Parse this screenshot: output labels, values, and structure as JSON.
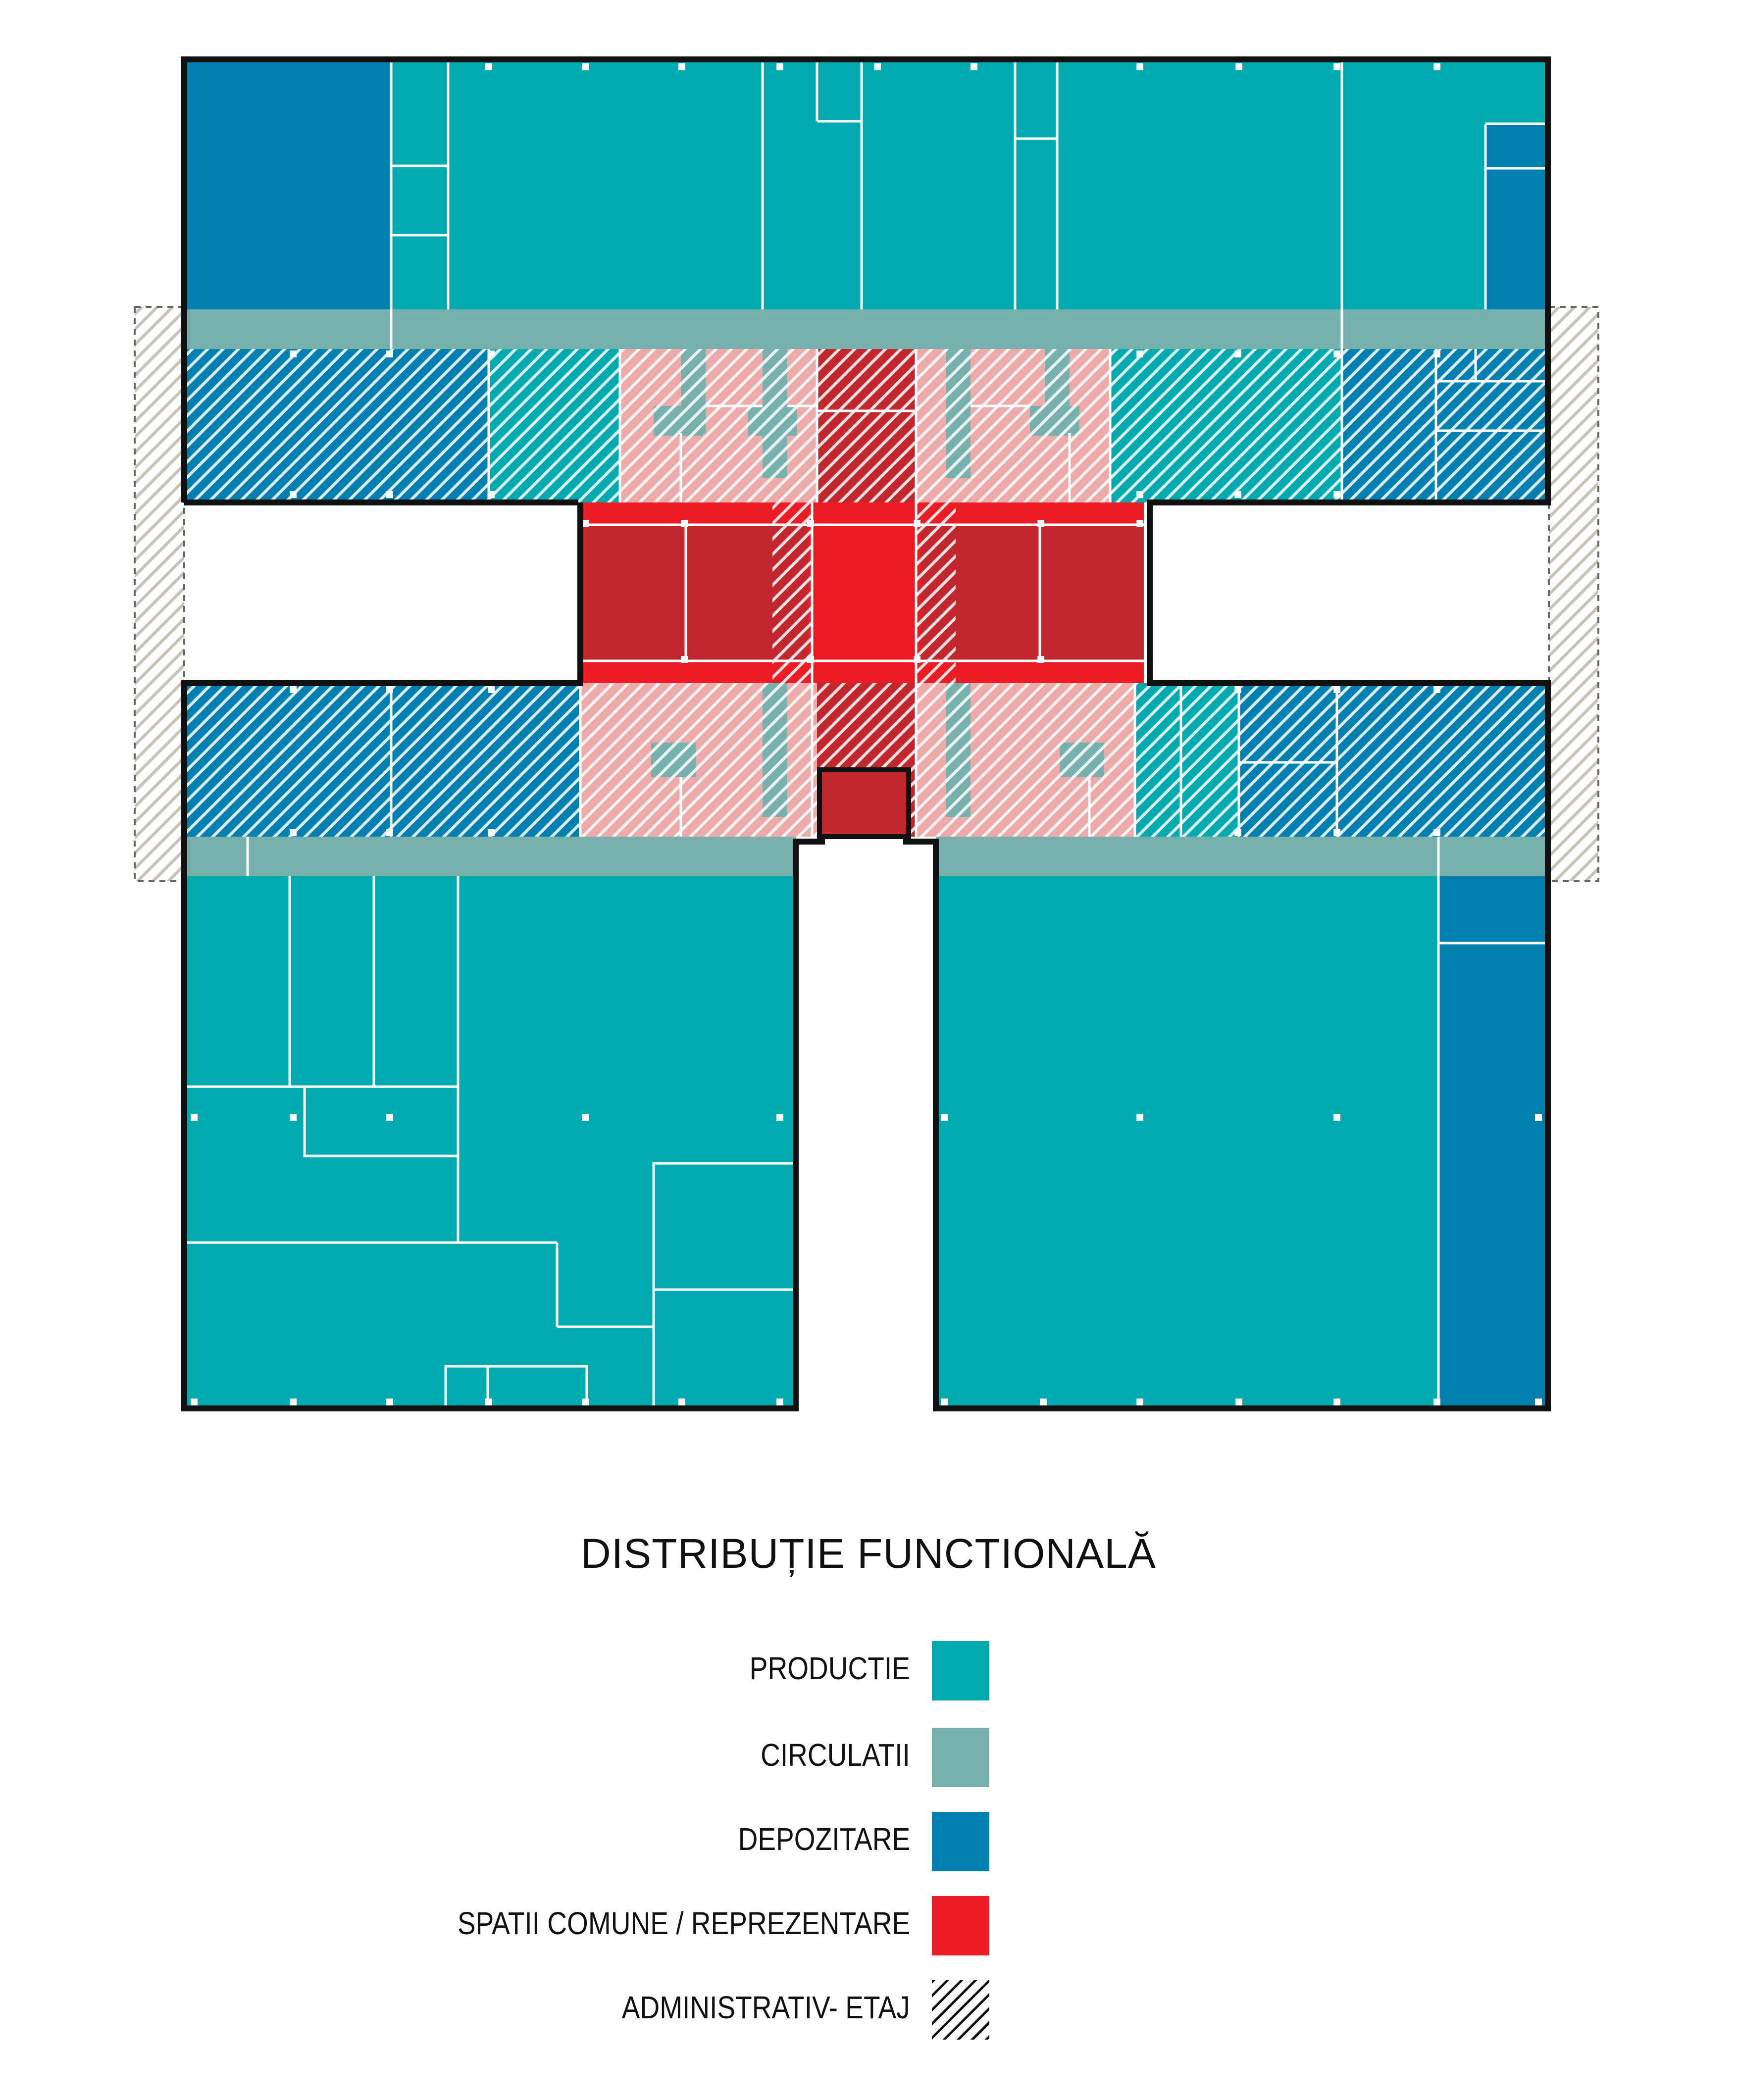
{
  "title": "DISTRIBUȚIE FUNCTIONALĂ",
  "colors": {
    "productie": "#00aaaf",
    "circulatii": "#76b1ae",
    "depozitare": "#0080b0",
    "spatii_comune": "#ec1c24",
    "spatii_comune_dark": "#c1272d",
    "spatii_comune_light": "#eeaaa9",
    "administrativ_hatch": "#ffffff"
  },
  "legend": [
    {
      "label": "PRODUCTIE",
      "color": "#00aaaf",
      "pattern": "solid"
    },
    {
      "label": "CIRCULATII",
      "color": "#76b1ae",
      "pattern": "solid"
    },
    {
      "label": "DEPOZITARE",
      "color": "#0080b0",
      "pattern": "solid"
    },
    {
      "label": "SPATII COMUNE / REPREZENTARE",
      "color": "#ec1c24",
      "pattern": "solid"
    },
    {
      "label": "ADMINISTRATIV- ETAJ",
      "color": "#111111",
      "pattern": "hatch"
    }
  ]
}
